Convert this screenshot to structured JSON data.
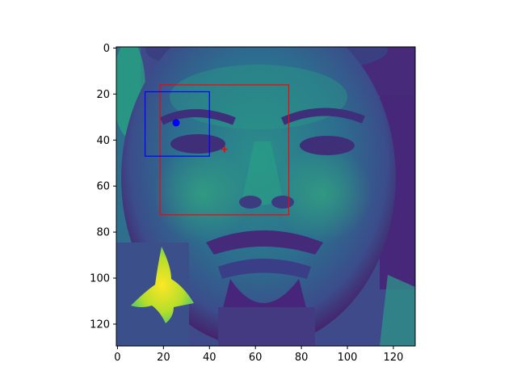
{
  "chart_data": {
    "type": "image",
    "colormap": "viridis",
    "image_extent": {
      "x": [
        -0.5,
        129.5
      ],
      "y": [
        129.5,
        -0.5
      ]
    },
    "xlim": [
      -0.5,
      129.5
    ],
    "ylim": [
      129.5,
      -0.5
    ],
    "x_ticks": [
      0,
      20,
      40,
      60,
      80,
      100,
      120
    ],
    "y_ticks": [
      0,
      20,
      40,
      60,
      80,
      100,
      120
    ],
    "boxes": [
      {
        "name": "red-box",
        "color": "#ff0000",
        "x0": 18.5,
        "y0": 16,
        "x1": 74.5,
        "y1": 72.5
      },
      {
        "name": "blue-box",
        "color": "#0000ff",
        "x0": 12,
        "y0": 19,
        "x1": 40,
        "y1": 47
      }
    ],
    "markers": [
      {
        "name": "blue-dot",
        "color": "#0000ff",
        "shape": "circle",
        "x": 25.5,
        "y": 32.5
      },
      {
        "name": "red-plus",
        "color": "#ff0000",
        "shape": "plus",
        "x": 46.5,
        "y": 44
      }
    ]
  }
}
